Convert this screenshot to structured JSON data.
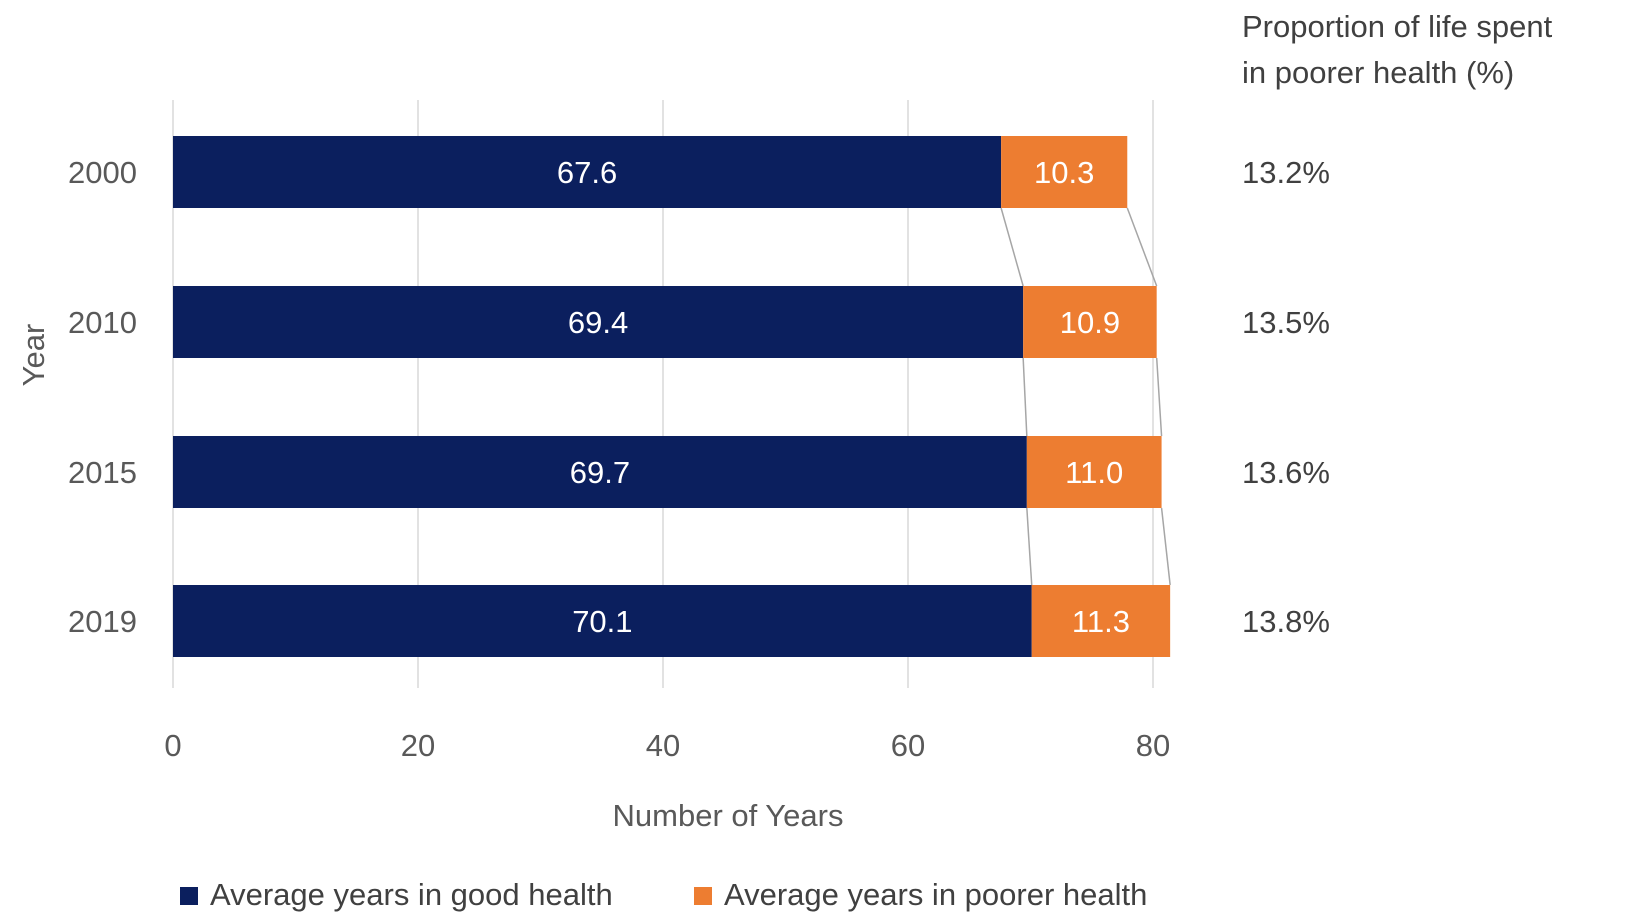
{
  "chart_data": {
    "type": "bar",
    "orientation": "horizontal",
    "stacked": true,
    "categories": [
      "2000",
      "2010",
      "2015",
      "2019"
    ],
    "series": [
      {
        "name": "Average years in good health",
        "values": [
          67.6,
          69.4,
          69.7,
          70.1
        ],
        "labels": [
          "67.6",
          "69.4",
          "69.7",
          "70.1"
        ],
        "color": "#0b1f5e"
      },
      {
        "name": "Average years in poorer health",
        "values": [
          10.3,
          10.9,
          11.0,
          11.3
        ],
        "labels": [
          "10.3",
          "10.9",
          "11.0",
          "11.3"
        ],
        "color": "#ed7d31"
      }
    ],
    "xlabel": "Number of Years",
    "ylabel": "Year",
    "xlim": [
      0,
      80
    ],
    "xticks": [
      "0",
      "20",
      "40",
      "60",
      "80"
    ],
    "grid": true,
    "legend_position": "bottom",
    "side_annotation": {
      "title_lines": [
        "Proportion of life spent",
        "in poorer health (%)"
      ],
      "values": [
        "13.2%",
        "13.5%",
        "13.6%",
        "13.8%"
      ]
    }
  }
}
